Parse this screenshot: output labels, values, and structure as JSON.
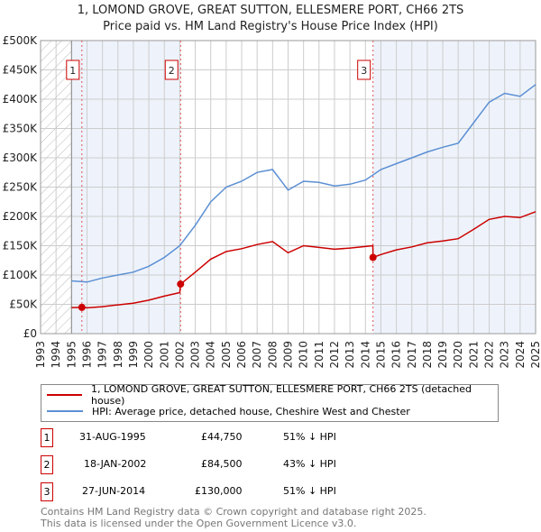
{
  "chart_data": {
    "type": "line",
    "title": "1, LOMOND GROVE, GREAT SUTTON, ELLESMERE PORT, CH66 2TS",
    "subtitle": "Price paid vs. HM Land Registry's House Price Index (HPI)",
    "xlim": [
      1993,
      2025
    ],
    "ylim": [
      0,
      500000
    ],
    "x_ticks": [
      "1993",
      "1994",
      "1995",
      "1996",
      "1997",
      "1998",
      "1999",
      "2000",
      "2001",
      "2002",
      "2003",
      "2004",
      "2005",
      "2006",
      "2007",
      "2008",
      "2009",
      "2010",
      "2011",
      "2012",
      "2013",
      "2014",
      "2015",
      "2016",
      "2017",
      "2018",
      "2019",
      "2020",
      "2021",
      "2022",
      "2023",
      "2024",
      "2025"
    ],
    "y_ticks": [
      {
        "v": 0,
        "label": "£0"
      },
      {
        "v": 50000,
        "label": "£50K"
      },
      {
        "v": 100000,
        "label": "£100K"
      },
      {
        "v": 150000,
        "label": "£150K"
      },
      {
        "v": 200000,
        "label": "£200K"
      },
      {
        "v": 250000,
        "label": "£250K"
      },
      {
        "v": 300000,
        "label": "£300K"
      },
      {
        "v": 350000,
        "label": "£350K"
      },
      {
        "v": 400000,
        "label": "£400K"
      },
      {
        "v": 450000,
        "label": "£450K"
      },
      {
        "v": 500000,
        "label": "£500K"
      }
    ],
    "grid": true,
    "series": [
      {
        "name": "1, LOMOND GROVE, GREAT SUTTON, ELLESMERE PORT, CH66 2TS (detached house)",
        "color": "#cc0000",
        "x": [
          1995.0,
          1995.67,
          1996,
          1997,
          1998,
          1999,
          2000,
          2001,
          2002.0,
          2002.05,
          2003,
          2004,
          2005,
          2006,
          2007,
          2008,
          2009,
          2010,
          2011,
          2012,
          2013,
          2014.48,
          2014.49,
          2015,
          2016,
          2017,
          2018,
          2019,
          2020,
          2021,
          2022,
          2023,
          2024,
          2025
        ],
        "y": [
          44500,
          44750,
          44000,
          46000,
          49000,
          52000,
          57000,
          64000,
          70000,
          84500,
          105000,
          127000,
          140000,
          145000,
          152000,
          157000,
          138000,
          150000,
          147000,
          144000,
          146000,
          150000,
          130000,
          135000,
          143000,
          148000,
          155000,
          158000,
          162000,
          178000,
          195000,
          200000,
          198000,
          208000
        ]
      },
      {
        "name": "HPI: Average price, detached house, Cheshire West and Chester",
        "color": "#5b8fd4",
        "x": [
          1995,
          1996,
          1997,
          1998,
          1999,
          2000,
          2001,
          2002,
          2003,
          2004,
          2005,
          2006,
          2007,
          2008,
          2009,
          2010,
          2011,
          2012,
          2013,
          2014,
          2015,
          2016,
          2017,
          2018,
          2019,
          2020,
          2021,
          2022,
          2023,
          2024,
          2025
        ],
        "y": [
          90000,
          88000,
          95000,
          100000,
          105000,
          115000,
          130000,
          150000,
          185000,
          225000,
          250000,
          260000,
          275000,
          280000,
          245000,
          260000,
          258000,
          252000,
          255000,
          262000,
          280000,
          290000,
          300000,
          310000,
          318000,
          325000,
          360000,
          395000,
          410000,
          405000,
          425000
        ]
      }
    ],
    "sales": [
      {
        "label": "1",
        "x": 1995.67,
        "y": 44750
      },
      {
        "label": "2",
        "x": 2002.05,
        "y": 84500
      },
      {
        "label": "3",
        "x": 2014.49,
        "y": 130000
      }
    ],
    "legend": "below"
  },
  "table": [
    {
      "num": "1",
      "date": "31-AUG-1995",
      "price": "£44,750",
      "hpi": "51% ↓ HPI"
    },
    {
      "num": "2",
      "date": "18-JAN-2002",
      "price": "£84,500",
      "hpi": "43% ↓ HPI"
    },
    {
      "num": "3",
      "date": "27-JUN-2014",
      "price": "£130,000",
      "hpi": "51% ↓ HPI"
    }
  ],
  "footer": [
    "Contains HM Land Registry data © Crown copyright and database right 2025.",
    "This data is licensed under the Open Government Licence v3.0."
  ]
}
